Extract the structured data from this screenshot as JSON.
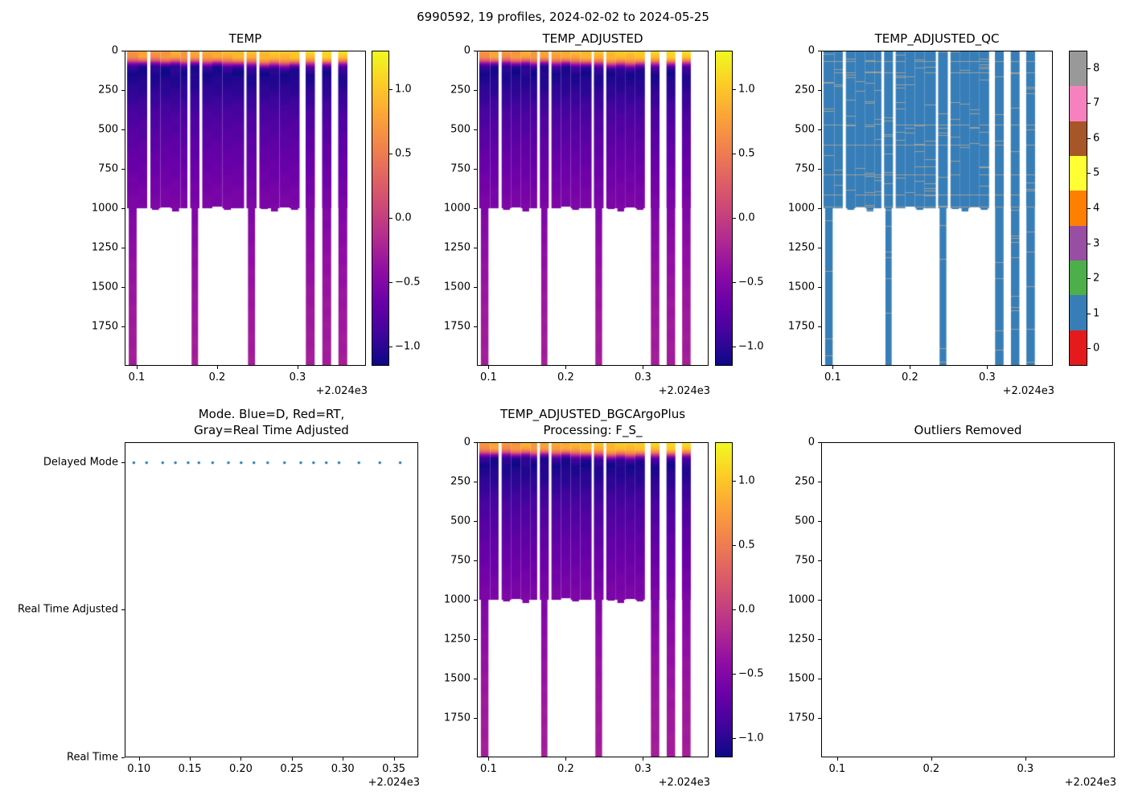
{
  "figure_title": "6990592, 19 profiles, 2024-02-02 to 2024-05-25",
  "colors": {
    "blue_dot": "#1f77b4",
    "qc_blue": "#377eb8",
    "qc_speckle": "#9e9e96",
    "plasma_stops": [
      "#0d0887",
      "#41049d",
      "#6a00a8",
      "#8f0da4",
      "#b12a90",
      "#cc4778",
      "#e16462",
      "#f2844b",
      "#fca636",
      "#fcce25",
      "#f0f921"
    ]
  },
  "temp_scale": {
    "vmin": -1.15,
    "vmax": 1.3,
    "cbar_tick_vals": [
      1.0,
      0.5,
      0.0,
      -0.5,
      -1.0
    ],
    "cbar_tick_labels": [
      "1.0",
      "0.5",
      "0.0",
      "−0.5",
      "−1.0"
    ]
  },
  "qc_scale": {
    "tick_labels": [
      "0",
      "1",
      "2",
      "3",
      "4",
      "5",
      "6",
      "7",
      "8"
    ],
    "colors": [
      "#e41a1c",
      "#377eb8",
      "#4daf4a",
      "#984ea3",
      "#ff7f00",
      "#ffff33",
      "#a65628",
      "#f781bf",
      "#999999"
    ]
  },
  "qc_speckle": {
    "row_density": 0.05,
    "col_density": 0.035,
    "deep_factor": 0.3
  },
  "field_data": {
    "max_depth": 2000,
    "depth_value_breakpoints": [
      [
        0,
        -0.55
      ],
      [
        40,
        -0.5
      ],
      [
        60,
        -0.15
      ],
      [
        80,
        0.6
      ],
      [
        100,
        1.18
      ],
      [
        140,
        1.24
      ],
      [
        250,
        1.15
      ],
      [
        400,
        1.0
      ],
      [
        600,
        0.88
      ],
      [
        800,
        0.78
      ],
      [
        1000,
        0.68
      ],
      [
        1300,
        0.56
      ],
      [
        1600,
        0.48
      ],
      [
        2000,
        0.42
      ]
    ],
    "columns": [
      {
        "x0": 0.088,
        "x1": 0.102,
        "bottom": 2000,
        "dv": -0.05,
        "ts": 1.0,
        "deepw": 0.7
      },
      {
        "x0": 0.102,
        "x1": 0.113,
        "bottom": 1000,
        "dv": -0.1,
        "ts": 1.0
      },
      {
        "x0": 0.117,
        "x1": 0.1295,
        "bottom": 1010,
        "dv": 0.0,
        "ts": 1.0
      },
      {
        "x0": 0.1295,
        "x1": 0.142,
        "bottom": 995,
        "dv": -0.05,
        "ts": 1.05
      },
      {
        "x0": 0.142,
        "x1": 0.1545,
        "bottom": 1020,
        "dv": -0.15,
        "ts": 1.0
      },
      {
        "x0": 0.1545,
        "x1": 0.163,
        "bottom": 1000,
        "dv": -0.1,
        "ts": 1.1
      },
      {
        "x0": 0.1665,
        "x1": 0.178,
        "bottom": 2000,
        "dv": -0.05,
        "ts": 1.0,
        "deepw": 0.7
      },
      {
        "x0": 0.1815,
        "x1": 0.194,
        "bottom": 1000,
        "dv": -0.2,
        "ts": 1.1
      },
      {
        "x0": 0.194,
        "x1": 0.2065,
        "bottom": 990,
        "dv": -0.15,
        "ts": 1.0
      },
      {
        "x0": 0.2065,
        "x1": 0.219,
        "bottom": 1010,
        "dv": -0.25,
        "ts": 1.15
      },
      {
        "x0": 0.219,
        "x1": 0.2335,
        "bottom": 1000,
        "dv": -0.3,
        "ts": 1.1
      },
      {
        "x0": 0.2365,
        "x1": 0.249,
        "bottom": 2000,
        "dv": -0.25,
        "ts": 1.2,
        "deepw": 0.7
      },
      {
        "x0": 0.2525,
        "x1": 0.265,
        "bottom": 1005,
        "dv": -0.35,
        "ts": 1.3
      },
      {
        "x0": 0.265,
        "x1": 0.2775,
        "bottom": 1020,
        "dv": -0.3,
        "ts": 1.25
      },
      {
        "x0": 0.2775,
        "x1": 0.29,
        "bottom": 995,
        "dv": -0.4,
        "ts": 1.3
      },
      {
        "x0": 0.29,
        "x1": 0.3025,
        "bottom": 1010,
        "dv": -0.35,
        "ts": 1.2
      },
      {
        "x0": 0.31,
        "x1": 0.3215,
        "bottom": 2000,
        "dv": -0.45,
        "ts": 1.15,
        "deepw": 0.95
      },
      {
        "x0": 0.3305,
        "x1": 0.342,
        "bottom": 2000,
        "dv": -0.5,
        "ts": 1.1,
        "deepw": 0.95
      },
      {
        "x0": 0.3505,
        "x1": 0.362,
        "bottom": 2000,
        "dv": -0.45,
        "ts": 1.1,
        "deepw": 0.95
      }
    ]
  },
  "chart_data": [
    {
      "type": "heatmap",
      "variant": "temp",
      "title_lines": [
        "TEMP"
      ],
      "xlim": [
        0.085,
        0.385
      ],
      "xtick_vals": [
        0.1,
        0.2,
        0.3
      ],
      "xtick_labels": [
        "0.1",
        "0.2",
        "0.3"
      ],
      "ylim": [
        0,
        2000
      ],
      "ytick_vals": [
        0,
        250,
        500,
        750,
        1000,
        1250,
        1500,
        1750
      ],
      "ytick_labels": [
        "0",
        "250",
        "500",
        "750",
        "1000",
        "1250",
        "1500",
        "1750"
      ],
      "offset_label": "+2.024e3",
      "xlabel": "",
      "ylabel": ""
    },
    {
      "type": "heatmap",
      "variant": "temp",
      "title_lines": [
        "TEMP_ADJUSTED"
      ],
      "xlim": [
        0.085,
        0.385
      ],
      "xtick_vals": [
        0.1,
        0.2,
        0.3
      ],
      "xtick_labels": [
        "0.1",
        "0.2",
        "0.3"
      ],
      "ylim": [
        0,
        2000
      ],
      "ytick_vals": [
        0,
        250,
        500,
        750,
        1000,
        1250,
        1500,
        1750
      ],
      "ytick_labels": [
        "0",
        "250",
        "500",
        "750",
        "1000",
        "1250",
        "1500",
        "1750"
      ],
      "offset_label": "+2.024e3"
    },
    {
      "type": "heatmap",
      "variant": "qc",
      "title_lines": [
        "TEMP_ADJUSTED_QC"
      ],
      "xlim": [
        0.085,
        0.385
      ],
      "xtick_vals": [
        0.1,
        0.2,
        0.3
      ],
      "xtick_labels": [
        "0.1",
        "0.2",
        "0.3"
      ],
      "ylim": [
        0,
        2000
      ],
      "ytick_vals": [
        0,
        250,
        500,
        750,
        1000,
        1250,
        1500,
        1750
      ],
      "ytick_labels": [
        "0",
        "250",
        "500",
        "750",
        "1000",
        "1250",
        "1500",
        "1750"
      ],
      "offset_label": "+2.024e3",
      "dominant_flag": 1
    },
    {
      "type": "scatter",
      "variant": "mode",
      "title_lines": [
        "Mode. Blue=D, Red=RT,",
        "Gray=Real Time Adjusted"
      ],
      "xlim": [
        0.086,
        0.374
      ],
      "xtick_vals": [
        0.1,
        0.15,
        0.2,
        0.25,
        0.3,
        0.35
      ],
      "xtick_labels": [
        "0.10",
        "0.15",
        "0.20",
        "0.25",
        "0.30",
        "0.35"
      ],
      "ycat_labels": [
        "Delayed Mode",
        "Real Time Adjusted",
        "Real Time"
      ],
      "ycat_fracs": [
        0.065,
        0.53,
        1.0
      ],
      "dot_y_frac": 0.065,
      "y_category": "Delayed Mode",
      "x": [
        0.095,
        0.1075,
        0.1233,
        0.1358,
        0.1483,
        0.1588,
        0.1723,
        0.1878,
        0.2003,
        0.2128,
        0.2263,
        0.2428,
        0.2588,
        0.2713,
        0.2838,
        0.2963,
        0.3158,
        0.3363,
        0.3563
      ],
      "offset_label": "+2.024e3"
    },
    {
      "type": "heatmap",
      "variant": "temp",
      "title_lines": [
        "TEMP_ADJUSTED_BGCArgoPlus",
        "Processing: F_S_"
      ],
      "xlim": [
        0.085,
        0.385
      ],
      "xtick_vals": [
        0.1,
        0.2,
        0.3
      ],
      "xtick_labels": [
        "0.1",
        "0.2",
        "0.3"
      ],
      "ylim": [
        0,
        2000
      ],
      "ytick_vals": [
        0,
        250,
        500,
        750,
        1000,
        1250,
        1500,
        1750
      ],
      "ytick_labels": [
        "0",
        "250",
        "500",
        "750",
        "1000",
        "1250",
        "1500",
        "1750"
      ],
      "offset_label": "+2.024e3"
    },
    {
      "type": "scatter",
      "variant": "empty",
      "title_lines": [
        "Outliers Removed"
      ],
      "xlim": [
        0.083,
        0.395
      ],
      "xtick_vals": [
        0.1,
        0.2,
        0.3
      ],
      "xtick_labels": [
        "0.1",
        "0.2",
        "0.3"
      ],
      "ylim": [
        0,
        2000
      ],
      "ytick_vals": [
        0,
        250,
        500,
        750,
        1000,
        1250,
        1500,
        1750
      ],
      "ytick_labels": [
        "0",
        "250",
        "500",
        "750",
        "1000",
        "1250",
        "1500",
        "1750"
      ],
      "x": [],
      "offset_label": "+2.024e3"
    }
  ]
}
